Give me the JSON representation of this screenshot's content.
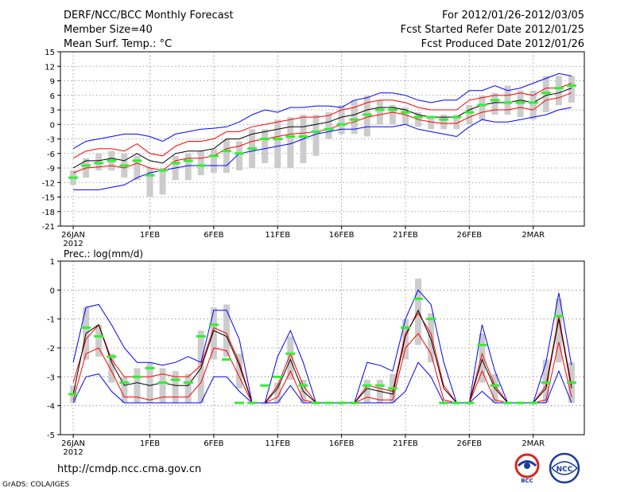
{
  "header": {
    "title": "DERF/NCC/BCC Monthly Forecast",
    "member_size": "Member Size=40",
    "variable": "Mean Surf. Temp.: °C",
    "period": "For 2012/01/26-2012/03/05",
    "fcst_started": "Fcst Started Refer Date 2012/01/25",
    "fcst_produced": "Fcst Produced Date 2012/01/26"
  },
  "precip_label": "Prec.: log(mm/d)",
  "footer": {
    "url": "http://cmdp.ncc.cma.gov.cn",
    "credit": "GrADS: COLA/IGES",
    "logo1_text": "BCC",
    "logo2_text": "NCC"
  },
  "colors": {
    "envelope": "#0000ff",
    "percentile": "#ff0000",
    "mean": "#000000",
    "box": "#cccccc",
    "median": "#33ee33",
    "grid": "#888888"
  },
  "chart_data": [
    {
      "type": "line",
      "panel": "temperature",
      "title": "Mean Surf. Temp.: °C",
      "xlabel": "",
      "ylabel": "°C",
      "ylim": [
        -21,
        15
      ],
      "yticks": [
        -21,
        -18,
        -15,
        -12,
        -9,
        -6,
        -3,
        0,
        3,
        6,
        9,
        12,
        15
      ],
      "x_tick_labels": [
        "26JAN",
        "1FEB",
        "6FEB",
        "11FEB",
        "16FEB",
        "21FEB",
        "26FEB",
        "2MAR"
      ],
      "x_tick_days": [
        1,
        7,
        12,
        17,
        22,
        27,
        32,
        37
      ],
      "x_year_label": "2012",
      "xlim": [
        0,
        41
      ],
      "days": [
        1,
        2,
        3,
        4,
        5,
        6,
        7,
        8,
        9,
        10,
        11,
        12,
        13,
        14,
        15,
        16,
        17,
        18,
        19,
        20,
        21,
        22,
        23,
        24,
        25,
        26,
        27,
        28,
        29,
        30,
        31,
        32,
        33,
        34,
        35,
        36,
        37,
        38,
        39,
        40
      ],
      "series": [
        {
          "name": "max",
          "color": "#0000ff",
          "values": [
            -5,
            -3.5,
            -3,
            -2.5,
            -2,
            -2,
            -2.5,
            -3.5,
            -2,
            -1.5,
            -1,
            -0.8,
            -0.5,
            0.5,
            2,
            3,
            2.5,
            3.5,
            3.5,
            3.8,
            3.8,
            3.5,
            5,
            5.5,
            6.5,
            6.5,
            6,
            5,
            4.5,
            5,
            5,
            7,
            7,
            8,
            7,
            7.5,
            8.5,
            9.5,
            10.5,
            10
          ]
        },
        {
          "name": "p90",
          "color": "#ff0000",
          "values": [
            -7,
            -5.5,
            -5,
            -5,
            -5.5,
            -4,
            -6,
            -6.5,
            -4.5,
            -3.5,
            -3.5,
            -3,
            -1.5,
            -1.5,
            -0.5,
            0,
            0.5,
            1,
            1.5,
            1.5,
            1.8,
            3,
            3.5,
            4.5,
            5,
            5,
            4.5,
            3.5,
            3,
            3,
            3,
            5,
            5.5,
            6,
            6,
            6.5,
            6,
            7.5,
            7.5,
            8.5
          ]
        },
        {
          "name": "mean",
          "color": "#000000",
          "values": [
            -9,
            -7.5,
            -7.5,
            -7,
            -7.5,
            -6,
            -7.5,
            -8,
            -6,
            -5.5,
            -5.5,
            -5,
            -3,
            -3,
            -2,
            -1.5,
            -1,
            -0.5,
            -0.5,
            0,
            0.5,
            1.5,
            2,
            3,
            3.5,
            3.5,
            3,
            2,
            1.5,
            1.5,
            1.5,
            3,
            4,
            4.5,
            4.5,
            5,
            4.5,
            6,
            6.5,
            7.5
          ]
        },
        {
          "name": "p10",
          "color": "#ff0000",
          "values": [
            -10,
            -9,
            -8.8,
            -8.5,
            -9,
            -8,
            -9,
            -9.5,
            -7.5,
            -7,
            -7,
            -6.5,
            -5,
            -4.5,
            -3.5,
            -3,
            -2.5,
            -2,
            -1.8,
            -1.5,
            -1,
            0,
            0.5,
            1.5,
            2,
            2.5,
            2,
            1,
            0.5,
            0.2,
            0.2,
            1.5,
            2.5,
            3,
            3,
            3.5,
            3,
            5,
            5.5,
            6.5
          ]
        },
        {
          "name": "min",
          "color": "#0000ff",
          "values": [
            -13.5,
            -13.5,
            -13.5,
            -13,
            -12.5,
            -11,
            -10,
            -9.5,
            -9,
            -8.5,
            -8.5,
            -8.5,
            -8.5,
            -6,
            -5.5,
            -5,
            -4.5,
            -4,
            -3,
            -2,
            -1.5,
            -1,
            -1,
            -0.5,
            -0.5,
            -0.5,
            0,
            -1,
            -1.5,
            -2,
            -2.5,
            -0.5,
            1,
            0.5,
            0.5,
            1,
            1.5,
            2,
            3,
            3.5
          ]
        },
        {
          "name": "median",
          "color": "#33ee33",
          "values": [
            -11,
            -8.5,
            -8,
            -7.5,
            -8.5,
            -7.5,
            -10.5,
            -9.5,
            -8,
            -7.5,
            -8.5,
            -6.5,
            -5.5,
            -6,
            -5,
            -3,
            -3,
            -2.5,
            -2.5,
            -1.5,
            -1,
            0,
            1,
            2,
            3,
            3,
            2.5,
            1.5,
            1.5,
            1,
            1.5,
            2.5,
            4,
            5,
            4.5,
            4.5,
            4.5,
            6.5,
            7.5,
            8
          ]
        }
      ],
      "boxes": [
        [
          -12.5,
          -9.5
        ],
        [
          -11,
          -7
        ],
        [
          -9.5,
          -6
        ],
        [
          -9.5,
          -5.5
        ],
        [
          -11,
          -6
        ],
        [
          -11.5,
          -6.5
        ],
        [
          -15,
          -9
        ],
        [
          -14.5,
          -9
        ],
        [
          -11.5,
          -6.5
        ],
        [
          -11.5,
          -6
        ],
        [
          -10.5,
          -5.5
        ],
        [
          -10,
          -5
        ],
        [
          -10,
          -3
        ],
        [
          -9.5,
          -3.5
        ],
        [
          -9,
          -1
        ],
        [
          -8,
          -1
        ],
        [
          -9,
          1
        ],
        [
          -9,
          1.5
        ],
        [
          -8,
          2
        ],
        [
          -6.5,
          2
        ],
        [
          -3,
          2.5
        ],
        [
          -2,
          4
        ],
        [
          -2,
          5
        ],
        [
          -2.5,
          6
        ],
        [
          0,
          5
        ],
        [
          0,
          4
        ],
        [
          0,
          3.5
        ],
        [
          -0.5,
          2.5
        ],
        [
          -1,
          1.5
        ],
        [
          -1,
          2
        ],
        [
          -1,
          2
        ],
        [
          0,
          4
        ],
        [
          1,
          6
        ],
        [
          2,
          6.5
        ],
        [
          2,
          8
        ],
        [
          1.5,
          7
        ],
        [
          1,
          7
        ],
        [
          2.5,
          10
        ],
        [
          4,
          10
        ],
        [
          4.5,
          10
        ]
      ]
    },
    {
      "type": "line",
      "panel": "precipitation",
      "title": "Prec.: log(mm/d)",
      "xlabel": "",
      "ylabel": "log(mm/d)",
      "ylim": [
        -5,
        1
      ],
      "yticks": [
        -5,
        -4,
        -3,
        -2,
        -1,
        0,
        1
      ],
      "x_tick_labels": [
        "26JAN",
        "1FEB",
        "6FEB",
        "11FEB",
        "16FEB",
        "21FEB",
        "26FEB",
        "2MAR"
      ],
      "x_tick_days": [
        1,
        7,
        12,
        17,
        22,
        27,
        32,
        37
      ],
      "x_year_label": "2012",
      "xlim": [
        0,
        41
      ],
      "days": [
        1,
        2,
        3,
        4,
        5,
        6,
        7,
        8,
        9,
        10,
        11,
        12,
        13,
        14,
        15,
        16,
        17,
        18,
        19,
        20,
        21,
        22,
        23,
        24,
        25,
        26,
        27,
        28,
        29,
        30,
        31,
        32,
        33,
        34,
        35,
        36,
        37,
        38,
        39,
        40
      ],
      "series": [
        {
          "name": "max",
          "color": "#0000ff",
          "values": [
            -2.5,
            -0.6,
            -0.5,
            -1.2,
            -2,
            -2.5,
            -2.5,
            -2.6,
            -2.5,
            -2.3,
            -2.5,
            -0.7,
            -0.7,
            -1.7,
            -3.9,
            -3.9,
            -2.3,
            -1.4,
            -2.5,
            -3.9,
            -3.9,
            -3.9,
            -3.9,
            -2.5,
            -2.6,
            -2.8,
            -1,
            0,
            -0.5,
            -2.5,
            -3.9,
            -3.9,
            -1.2,
            -2.8,
            -3.9,
            -3.9,
            -3.9,
            -2.5,
            -0.1,
            -2.6
          ]
        },
        {
          "name": "p90",
          "color": "#ff0000",
          "values": [
            -3.2,
            -1.7,
            -1.2,
            -2.4,
            -3,
            -3,
            -3,
            -2.9,
            -3,
            -3,
            -2.6,
            -1.3,
            -1.5,
            -2.5,
            -3.9,
            -3.9,
            -3.3,
            -2.2,
            -3.3,
            -3.9,
            -3.9,
            -3.9,
            -3.9,
            -3.3,
            -3.4,
            -3.5,
            -1.5,
            -0.8,
            -1.5,
            -3.3,
            -3.9,
            -3.9,
            -2.2,
            -3.3,
            -3.9,
            -3.9,
            -3.9,
            -3.3,
            -0.9,
            -3.3
          ]
        },
        {
          "name": "mean",
          "color": "#000000",
          "values": [
            -3.6,
            -1.5,
            -1.2,
            -2.5,
            -3.3,
            -3.2,
            -3.3,
            -3.2,
            -3.3,
            -3.3,
            -2.7,
            -1.4,
            -1.6,
            -2.6,
            -3.9,
            -3.9,
            -3.4,
            -2.4,
            -3.5,
            -3.9,
            -3.9,
            -3.9,
            -3.9,
            -3.4,
            -3.5,
            -3.6,
            -1.6,
            -0.7,
            -1.7,
            -3.4,
            -3.9,
            -3.9,
            -2.4,
            -3.4,
            -3.9,
            -3.9,
            -3.9,
            -3.4,
            -1,
            -3.4
          ]
        },
        {
          "name": "p10",
          "color": "#ff0000",
          "values": [
            -3.8,
            -2.2,
            -2,
            -2.8,
            -3.7,
            -3.7,
            -3.8,
            -3.7,
            -3.7,
            -3.7,
            -3.2,
            -2,
            -2.1,
            -3,
            -3.9,
            -3.9,
            -3.7,
            -2.8,
            -3.8,
            -3.9,
            -3.9,
            -3.9,
            -3.9,
            -3.7,
            -3.8,
            -3.8,
            -2,
            -1.5,
            -2.2,
            -3.8,
            -3.9,
            -3.9,
            -2.8,
            -3.8,
            -3.9,
            -3.9,
            -3.9,
            -3.8,
            -1.8,
            -3.7
          ]
        },
        {
          "name": "min",
          "color": "#0000ff",
          "values": [
            -3.9,
            -3,
            -2.9,
            -3.5,
            -3.9,
            -3.9,
            -3.9,
            -3.9,
            -3.9,
            -3.9,
            -3.9,
            -3,
            -3,
            -3.5,
            -3.9,
            -3.9,
            -3.9,
            -3.3,
            -3.9,
            -3.9,
            -3.9,
            -3.9,
            -3.9,
            -3.9,
            -3.9,
            -3.9,
            -3.5,
            -2.5,
            -3,
            -3.9,
            -3.9,
            -3.9,
            -3.5,
            -3.9,
            -3.9,
            -3.9,
            -3.9,
            -3.9,
            -2.8,
            -3.9
          ]
        },
        {
          "name": "median",
          "color": "#33ee33",
          "values": [
            -3.6,
            -1.3,
            -1.6,
            -2.3,
            -3.2,
            -3,
            -2.7,
            -3.2,
            -3.1,
            -3.2,
            -1.6,
            -1.2,
            -2.4,
            -3.9,
            -3.9,
            -3.3,
            -3,
            -2.2,
            -3.3,
            -3.9,
            -3.9,
            -3.9,
            -3.9,
            -3.3,
            -3.3,
            -3.4,
            -1.3,
            -0.3,
            -1,
            -3.9,
            -3.9,
            -3.9,
            -1.9,
            -3.3,
            -3.9,
            -3.9,
            -3.9,
            -3.2,
            -0.9,
            -3.2
          ]
        }
      ],
      "boxes": [
        [
          -3.9,
          -3.3
        ],
        [
          -2.4,
          -0.6
        ],
        [
          -2.3,
          -1.2
        ],
        [
          -3.2,
          -2.2
        ],
        [
          -3.9,
          -3
        ],
        [
          -3.9,
          -2.7
        ],
        [
          -3.9,
          -2.5
        ],
        [
          -3.9,
          -2.7
        ],
        [
          -3.9,
          -2.8
        ],
        [
          -3.9,
          -2.9
        ],
        [
          -3.9,
          -1.4
        ],
        [
          -2.4,
          -0.6
        ],
        [
          -2.3,
          -0.5
        ],
        [
          -3.4,
          -2.2
        ],
        [
          -3.9,
          -3.9
        ],
        [
          -3.9,
          -3.9
        ],
        [
          -3.9,
          -3.2
        ],
        [
          -3.1,
          -1.6
        ],
        [
          -3.9,
          -3.1
        ],
        [
          -3.9,
          -3.9
        ],
        [
          -3.9,
          -3.9
        ],
        [
          -3.9,
          -3.9
        ],
        [
          -3.9,
          -3.9
        ],
        [
          -3.9,
          -3.1
        ],
        [
          -3.9,
          -3.1
        ],
        [
          -3.9,
          -2.9
        ],
        [
          -2.4,
          -1
        ],
        [
          -1.9,
          0.4
        ],
        [
          -2.5,
          -0.8
        ],
        [
          -3.9,
          -3.9
        ],
        [
          -3.9,
          -3.9
        ],
        [
          -3.9,
          -3.9
        ],
        [
          -3.2,
          -1.5
        ],
        [
          -3.9,
          -2.9
        ],
        [
          -3.9,
          -3.9
        ],
        [
          -3.9,
          -3.9
        ],
        [
          -3.9,
          -3.9
        ],
        [
          -3.9,
          -2.4
        ],
        [
          -2.5,
          -0.3
        ],
        [
          -3.9,
          -2.5
        ]
      ]
    }
  ]
}
